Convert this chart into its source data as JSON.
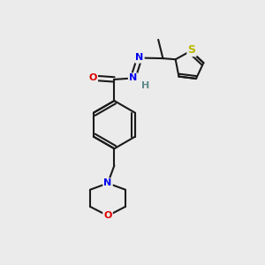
{
  "bg_color": "#ebebeb",
  "bond_color": "#1a1a1a",
  "bond_width": 1.5,
  "atom_colors": {
    "N": "#0000ee",
    "O": "#dd0000",
    "S": "#b8b800",
    "H": "#5f8a8a",
    "C": "#1a1a1a"
  },
  "font_size_atom": 8,
  "font_size_small": 7,
  "xlim": [
    0,
    10
  ],
  "ylim": [
    0,
    10
  ]
}
